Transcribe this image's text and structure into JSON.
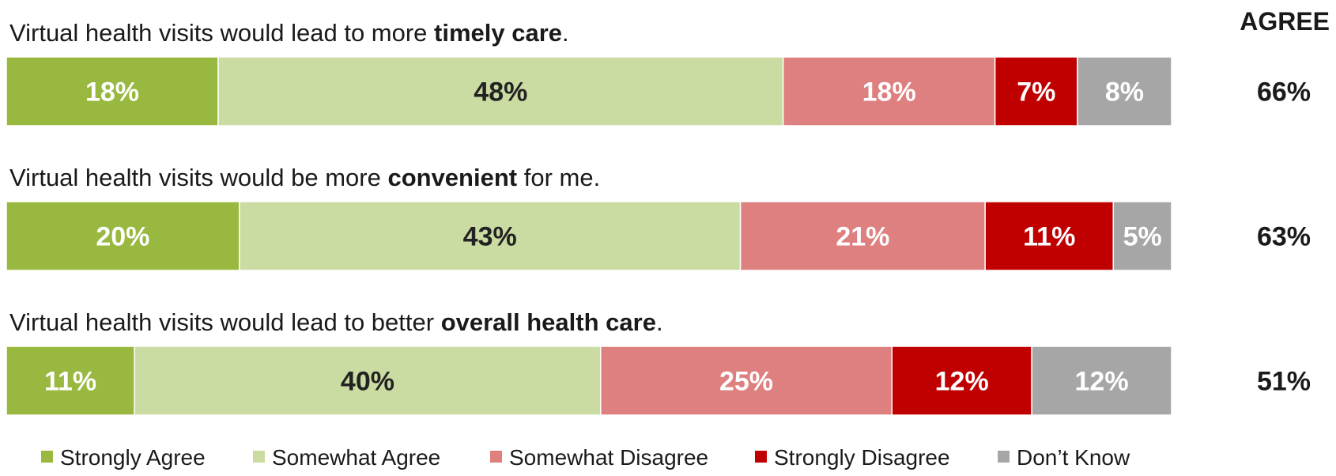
{
  "chart_data": {
    "type": "bar",
    "orientation": "horizontal",
    "stacked": true,
    "percent_stacked": true,
    "agree_header": "AGREE",
    "statements": [
      {
        "prefix": "Virtual health visits would lead to more ",
        "bold": "timely care",
        "suffix": ".",
        "agree": "66%"
      },
      {
        "prefix": "Virtual health visits would be more ",
        "bold": "convenient",
        "suffix": " for me.",
        "agree": "63%"
      },
      {
        "prefix": "Virtual health visits would lead to better ",
        "bold": "overall health care",
        "suffix": ".",
        "agree": "51%"
      }
    ],
    "series": [
      {
        "name": "Strongly Agree",
        "color": "#99b83f",
        "label_color": "#ffffff",
        "values": [
          18,
          20,
          11
        ]
      },
      {
        "name": "Somewhat Agree",
        "color": "#cbdca3",
        "label_color": "#222222",
        "values": [
          48,
          43,
          40
        ]
      },
      {
        "name": "Somewhat Disagree",
        "color": "#de8080",
        "label_color": "#ffffff",
        "values": [
          18,
          21,
          25
        ]
      },
      {
        "name": "Strongly Disagree",
        "color": "#c00000",
        "label_color": "#ffffff",
        "values": [
          7,
          11,
          12
        ]
      },
      {
        "name": "Don’t Know",
        "color": "#a6a6a6",
        "label_color": "#ffffff",
        "values": [
          8,
          5,
          12
        ]
      }
    ],
    "value_suffix": "%",
    "legend_position": "bottom",
    "grid": false
  }
}
